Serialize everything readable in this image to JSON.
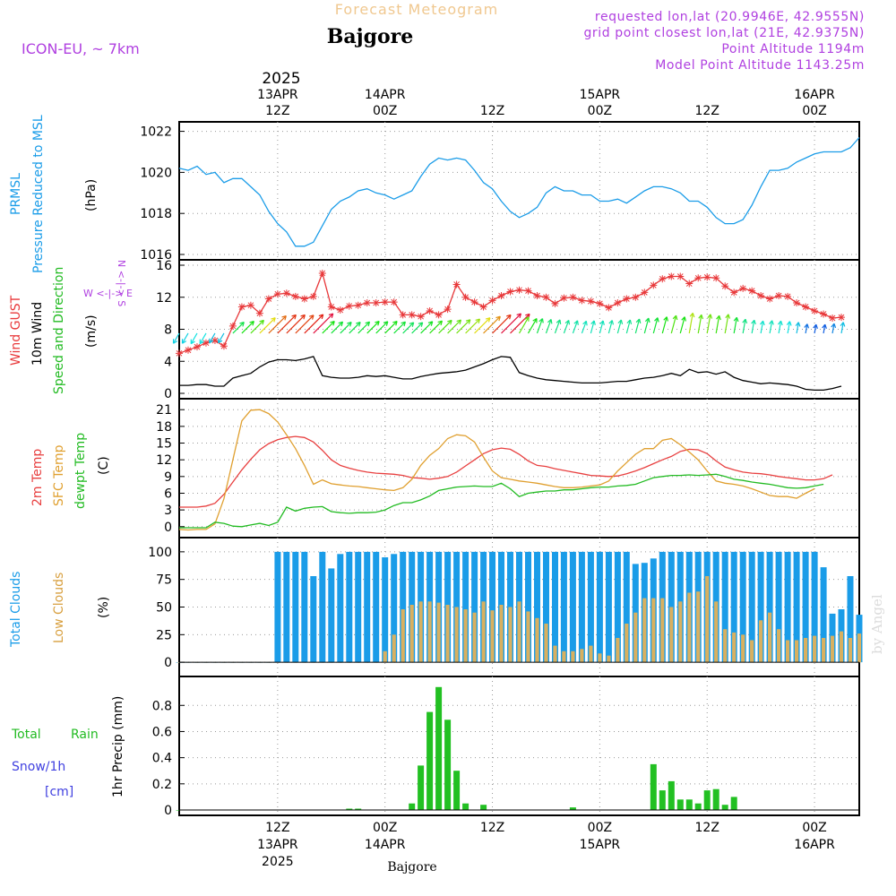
{
  "header": {
    "product": "Forecast Meteogram",
    "location": "Bajgore",
    "model": "ICON-EU, ~ 7km",
    "requested": "requested lon,lat (20.9946E, 42.9555N)",
    "gridpoint": "grid point closest lon,lat (21E, 42.9375N)",
    "point_alt": "Point Altitude 1194m",
    "model_alt": "Model Point Altitude 1143.25m",
    "credit": "by Angel",
    "footer_location": "Bajgore"
  },
  "colors": {
    "pressure": "#1a9ce8",
    "gust": "#e8383a",
    "wind": "#000000",
    "temp2m": "#e84040",
    "sfc": "#e0a030",
    "dewpt": "#22bb22",
    "total_clouds": "#1a9ce8",
    "low_clouds": "#d8b060",
    "rain": "#22c022",
    "snow": "#4040e0",
    "header_purple": "#b040e0",
    "header_title_gold": "#f0c890"
  },
  "time_axis": {
    "top_year": "2025",
    "top_ticks": [
      {
        "hour": 12,
        "date": "13APR",
        "time": "12Z"
      },
      {
        "hour": 24,
        "date": "14APR",
        "time": "00Z"
      },
      {
        "hour": 36,
        "date": "",
        "time": "12Z"
      },
      {
        "hour": 48,
        "date": "15APR",
        "time": "00Z"
      },
      {
        "hour": 60,
        "date": "",
        "time": "12Z"
      },
      {
        "hour": 72,
        "date": "16APR",
        "time": "00Z"
      }
    ],
    "bottom_ticks": [
      {
        "hour": 12,
        "time": "12Z",
        "date": "13APR",
        "year": "2025"
      },
      {
        "hour": 24,
        "time": "00Z",
        "date": "14APR",
        "year": ""
      },
      {
        "hour": 36,
        "time": "12Z",
        "date": "",
        "year": ""
      },
      {
        "hour": 48,
        "time": "00Z",
        "date": "15APR",
        "year": ""
      },
      {
        "hour": 60,
        "time": "12Z",
        "date": "",
        "year": ""
      },
      {
        "hour": 72,
        "time": "00Z",
        "date": "16APR",
        "year": ""
      }
    ],
    "range_hours": [
      1,
      77
    ]
  },
  "panels": {
    "pressure": {
      "label1": "PRMSL",
      "label2": "Pressure Reduced to MSL",
      "unit": "(hPa)"
    },
    "wind": {
      "label_gust": "Wind GUST",
      "label_wind": "10m Wind",
      "label_dir": "Speed and Direction",
      "unit": "(m/s)",
      "compass": "W <-|-> E",
      "compass_v": "N <-|-> S"
    },
    "temp": {
      "label_2m": "2m Temp",
      "label_sfc": "SFC Temp",
      "label_dew": "dewpt Temp",
      "unit": "(C)"
    },
    "clouds": {
      "label_total": "Total Clouds",
      "label_low": "Low Clouds",
      "unit": "(%)"
    },
    "precip": {
      "label_total": "Total",
      "label_rain": "Rain",
      "label_snow": "Snow/1h",
      "label_cm": "[cm]",
      "unit": "1hr Precip (mm)"
    }
  },
  "chart_data": [
    {
      "type": "line",
      "title": "PRMSL Pressure Reduced to MSL",
      "ylabel": "(hPa)",
      "ylim": [
        1016,
        1022.2
      ],
      "yticks": [
        1016,
        1018,
        1020,
        1022
      ],
      "series": [
        {
          "name": "PRMSL",
          "x_start": 1,
          "x_step": 1,
          "values": [
            1020.2,
            1020.1,
            1020.3,
            1019.9,
            1020.0,
            1019.5,
            1019.7,
            1019.7,
            1019.3,
            1018.9,
            1018.1,
            1017.5,
            1017.1,
            1016.4,
            1016.4,
            1016.6,
            1017.4,
            1018.2,
            1018.6,
            1018.8,
            1019.1,
            1019.2,
            1019.0,
            1018.9,
            1018.7,
            1018.9,
            1019.1,
            1019.8,
            1020.4,
            1020.7,
            1020.6,
            1020.7,
            1020.6,
            1020.1,
            1019.5,
            1019.2,
            1018.6,
            1018.1,
            1017.8,
            1018.0,
            1018.3,
            1019.0,
            1019.3,
            1019.1,
            1019.1,
            1018.9,
            1018.9,
            1018.6,
            1018.6,
            1018.7,
            1018.5,
            1018.8,
            1019.1,
            1019.3,
            1019.3,
            1019.2,
            1019.0,
            1018.6,
            1018.6,
            1018.3,
            1017.8,
            1017.5,
            1017.5,
            1017.7,
            1018.4,
            1019.3,
            1020.1,
            1020.1,
            1020.2,
            1020.5,
            1020.7,
            1020.9,
            1021.0,
            1021.0,
            1021.0,
            1021.2,
            1021.7
          ]
        }
      ]
    },
    {
      "type": "line",
      "title": "Wind GUST / 10m Wind Speed and Direction",
      "ylabel": "(m/s)",
      "ylim": [
        0,
        16
      ],
      "yticks": [
        0,
        4,
        8,
        12,
        16
      ],
      "series": [
        {
          "name": "Wind GUST",
          "x_start": 1,
          "x_step": 1,
          "values": [
            5.0,
            5.4,
            5.8,
            6.3,
            6.6,
            5.9,
            8.4,
            10.8,
            11.0,
            10.0,
            11.8,
            12.4,
            12.5,
            12.1,
            11.8,
            12.1,
            15.0,
            10.8,
            10.4,
            10.9,
            11.0,
            11.3,
            11.3,
            11.4,
            11.4,
            9.8,
            9.8,
            9.6,
            10.3,
            9.8,
            10.5,
            13.6,
            12.0,
            11.4,
            10.8,
            11.6,
            12.2,
            12.7,
            12.9,
            12.8,
            12.2,
            12.0,
            11.2,
            11.9,
            12.0,
            11.6,
            11.5,
            11.2,
            10.7,
            11.3,
            11.8,
            12.0,
            12.6,
            13.5,
            14.3,
            14.6,
            14.6,
            13.7,
            14.4,
            14.5,
            14.4,
            13.4,
            12.6,
            13.1,
            12.8,
            12.2,
            11.8,
            12.2,
            12.1,
            11.3,
            10.8,
            10.3,
            9.9,
            9.4,
            9.5
          ]
        },
        {
          "name": "10m Wind",
          "x_start": 1,
          "x_step": 1,
          "values": [
            1.0,
            1.0,
            1.1,
            1.1,
            0.9,
            0.9,
            1.9,
            2.2,
            2.5,
            3.3,
            3.9,
            4.2,
            4.2,
            4.1,
            4.3,
            4.6,
            2.2,
            2.0,
            1.9,
            1.9,
            2.0,
            2.2,
            2.1,
            2.2,
            2.0,
            1.8,
            1.8,
            2.1,
            2.3,
            2.5,
            2.6,
            2.7,
            2.9,
            3.3,
            3.7,
            4.2,
            4.6,
            4.5,
            2.6,
            2.2,
            1.9,
            1.7,
            1.6,
            1.5,
            1.4,
            1.3,
            1.3,
            1.3,
            1.4,
            1.5,
            1.5,
            1.7,
            1.9,
            2.0,
            2.2,
            2.5,
            2.2,
            3.0,
            2.6,
            2.7,
            2.4,
            2.7,
            2.0,
            1.6,
            1.4,
            1.2,
            1.3,
            1.2,
            1.1,
            0.9,
            0.5,
            0.4,
            0.4,
            0.6,
            0.9
          ]
        }
      ],
      "arrow_baseline": 7.5,
      "arrow_directions_deg": [
        210,
        210,
        210,
        210,
        210,
        210,
        45,
        45,
        45,
        45,
        45,
        45,
        45,
        45,
        45,
        45,
        45,
        45,
        45,
        45,
        45,
        45,
        45,
        45,
        45,
        45,
        45,
        45,
        45,
        45,
        45,
        45,
        45,
        45,
        45,
        45,
        45,
        45,
        30,
        30,
        20,
        20,
        20,
        20,
        20,
        20,
        15,
        15,
        15,
        15,
        15,
        15,
        15,
        15,
        15,
        15,
        15,
        10,
        10,
        10,
        10,
        10,
        10,
        10,
        10,
        10,
        10,
        10,
        10,
        10,
        10,
        10,
        10,
        10,
        10
      ]
    },
    {
      "type": "line",
      "title": "2m Temp / SFC Temp / dewpt Temp",
      "ylabel": "(C)",
      "ylim": [
        -1,
        22
      ],
      "yticks": [
        0,
        3,
        6,
        9,
        12,
        15,
        18,
        21
      ],
      "series": [
        {
          "name": "2m Temp",
          "x_start": 1,
          "x_step": 1,
          "values": [
            3.5,
            3.5,
            3.5,
            3.7,
            4.2,
            5.8,
            8.0,
            10.2,
            12.1,
            13.8,
            14.9,
            15.6,
            16.0,
            16.2,
            16.0,
            15.2,
            13.7,
            12.0,
            11.0,
            10.5,
            10.1,
            9.8,
            9.6,
            9.5,
            9.4,
            9.2,
            8.8,
            8.7,
            8.5,
            8.7,
            9.0,
            9.8,
            10.9,
            12.0,
            13.1,
            13.8,
            14.1,
            13.9,
            13.0,
            11.8,
            11.0,
            10.8,
            10.4,
            10.1,
            9.8,
            9.5,
            9.2,
            9.1,
            9.0,
            9.1,
            9.5,
            10.0,
            10.6,
            11.3,
            12.0,
            12.6,
            13.5,
            13.9,
            13.8,
            13.1,
            11.8,
            10.7,
            10.2,
            9.8,
            9.6,
            9.5,
            9.3,
            9.0,
            8.8,
            8.6,
            8.4,
            8.4,
            8.6,
            9.3
          ]
        },
        {
          "name": "SFC Temp",
          "x_start": 1,
          "x_step": 1,
          "values": [
            -0.5,
            -0.6,
            -0.5,
            -0.5,
            0.5,
            5.0,
            12.0,
            19.0,
            20.9,
            21.0,
            20.3,
            18.8,
            16.5,
            14.0,
            11.0,
            7.6,
            8.4,
            7.7,
            7.5,
            7.3,
            7.2,
            7.0,
            6.8,
            6.6,
            6.5,
            7.0,
            8.5,
            11.0,
            12.8,
            14.0,
            15.8,
            16.5,
            16.3,
            15.2,
            12.5,
            10.0,
            8.8,
            8.5,
            8.2,
            8.0,
            7.8,
            7.5,
            7.2,
            7.0,
            7.0,
            7.1,
            7.3,
            7.5,
            8.2,
            10.0,
            11.5,
            13.0,
            14.0,
            14.0,
            15.5,
            15.8,
            14.7,
            13.4,
            12.0,
            10.0,
            8.2,
            7.8,
            7.6,
            7.3,
            6.8,
            6.2,
            5.6,
            5.4,
            5.4,
            5.1,
            6.0,
            6.8
          ]
        },
        {
          "name": "dewpt Temp",
          "x_start": 1,
          "x_step": 1,
          "values": [
            -0.2,
            -0.2,
            -0.2,
            -0.2,
            0.8,
            0.6,
            0.1,
            0.0,
            0.3,
            0.6,
            0.2,
            0.8,
            3.5,
            2.8,
            3.3,
            3.5,
            3.6,
            2.7,
            2.5,
            2.4,
            2.5,
            2.5,
            2.6,
            3.0,
            3.8,
            4.3,
            4.3,
            4.8,
            5.5,
            6.5,
            6.8,
            7.1,
            7.2,
            7.3,
            7.2,
            7.2,
            7.8,
            6.8,
            5.4,
            6.0,
            6.2,
            6.4,
            6.4,
            6.6,
            6.6,
            6.8,
            7.0,
            7.1,
            7.1,
            7.3,
            7.4,
            7.6,
            8.2,
            8.8,
            9.0,
            9.2,
            9.2,
            9.3,
            9.2,
            9.3,
            9.4,
            9.0,
            8.5,
            8.3,
            8.0,
            7.8,
            7.6,
            7.3,
            7.0,
            6.9,
            7.0,
            7.3,
            7.6
          ]
        }
      ]
    },
    {
      "type": "bar",
      "title": "Total Clouds / Low Clouds",
      "ylabel": "(%)",
      "ylim": [
        -8,
        108
      ],
      "yticks": [
        0,
        25,
        50,
        75,
        100
      ],
      "series": [
        {
          "name": "Total Clouds",
          "x_start": 1,
          "x_step": 1,
          "values": [
            0,
            0,
            0,
            0,
            0,
            0,
            0,
            0,
            0,
            0,
            0,
            100,
            100,
            100,
            100,
            78,
            100,
            85,
            98,
            100,
            100,
            100,
            100,
            95,
            98,
            100,
            100,
            100,
            100,
            100,
            100,
            100,
            100,
            100,
            100,
            100,
            100,
            100,
            100,
            100,
            100,
            100,
            100,
            100,
            100,
            100,
            100,
            100,
            100,
            100,
            100,
            89,
            90,
            94,
            100,
            100,
            100,
            100,
            100,
            100,
            100,
            100,
            100,
            100,
            100,
            100,
            100,
            100,
            100,
            100,
            100,
            100,
            86,
            44,
            48,
            78,
            43,
            30,
            28,
            45,
            35,
            38,
            45,
            80,
            62,
            50
          ]
        },
        {
          "name": "Low Clouds",
          "x_start": 1,
          "x_step": 1,
          "values": [
            0,
            0,
            0,
            0,
            0,
            0,
            0,
            0,
            0,
            0,
            0,
            0,
            0,
            0,
            0,
            0,
            0,
            0,
            0,
            0,
            0,
            0,
            0,
            10,
            25,
            48,
            52,
            55,
            55,
            54,
            52,
            50,
            48,
            45,
            55,
            47,
            52,
            50,
            55,
            46,
            40,
            35,
            15,
            10,
            10,
            12,
            15,
            8,
            6,
            22,
            35,
            45,
            58,
            58,
            58,
            50,
            55,
            63,
            64,
            78,
            55,
            30,
            27,
            25,
            20,
            38,
            45,
            30,
            20,
            20,
            22,
            24,
            22,
            24,
            28,
            22,
            26,
            22,
            24,
            26,
            22,
            24,
            20,
            25
          ]
        }
      ]
    },
    {
      "type": "bar",
      "title": "1hr Precip",
      "ylabel": "1hr Precip (mm)",
      "ylim": [
        0,
        0.98
      ],
      "yticks": [
        0,
        0.2,
        0.4,
        0.6,
        0.8
      ],
      "series": [
        {
          "name": "Total Rain",
          "x_start": 1,
          "x_step": 1,
          "values": [
            0,
            0,
            0,
            0,
            0,
            0,
            0,
            0,
            0,
            0,
            0,
            0,
            0,
            0,
            0,
            0,
            0,
            0,
            0,
            0.01,
            0.01,
            0,
            0,
            0,
            0,
            0,
            0.05,
            0.34,
            0.75,
            0.94,
            0.69,
            0.3,
            0.05,
            0,
            0.04,
            0,
            0,
            0,
            0,
            0,
            0,
            0,
            0,
            0,
            0.02,
            0,
            0,
            0,
            0,
            0,
            0,
            0,
            0,
            0.35,
            0.15,
            0.22,
            0.08,
            0.08,
            0.05,
            0.15,
            0.16,
            0.04,
            0.1,
            0,
            0,
            0,
            0,
            0,
            0,
            0,
            0,
            0,
            0,
            0,
            0,
            0
          ]
        }
      ]
    }
  ]
}
